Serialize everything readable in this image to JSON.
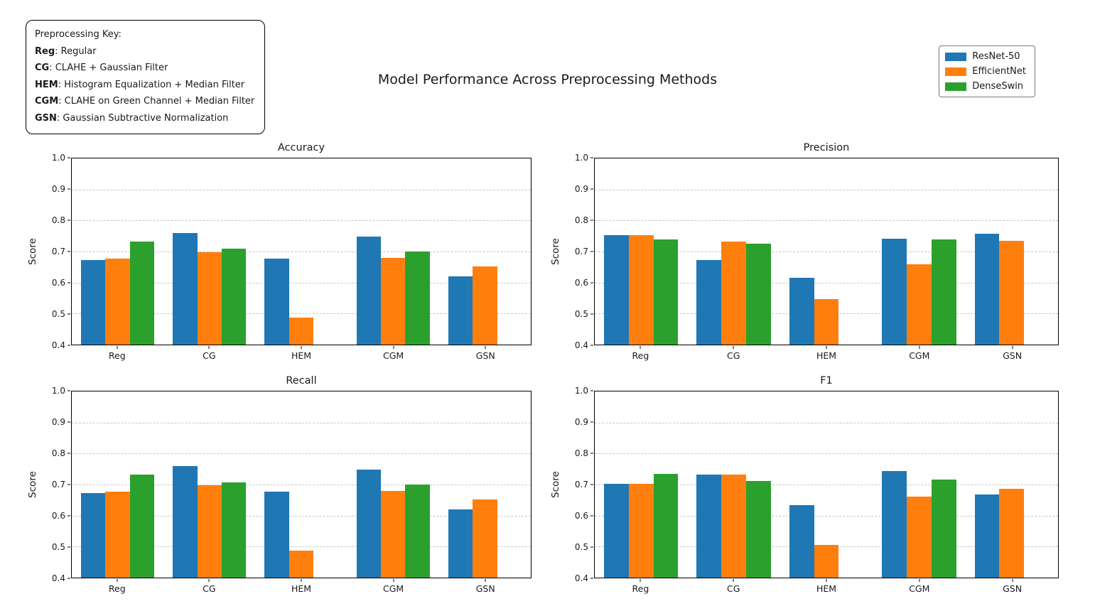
{
  "figure_title": "Model Performance Across Preprocessing Methods",
  "key_box": {
    "title": "Preprocessing Key:",
    "entries": [
      {
        "abbr": "Reg",
        "desc": "Regular"
      },
      {
        "abbr": "CG",
        "desc": "CLAHE + Gaussian Filter"
      },
      {
        "abbr": "HEM",
        "desc": "Histogram Equalization + Median Filter"
      },
      {
        "abbr": "CGM",
        "desc": "CLAHE on Green Channel + Median Filter"
      },
      {
        "abbr": "GSN",
        "desc": "Gaussian Subtractive Normalization"
      }
    ]
  },
  "legend": {
    "position": "top-right",
    "items": [
      {
        "label": "ResNet-50",
        "color": "#1f77b4"
      },
      {
        "label": "EfficientNet",
        "color": "#ff7f0e"
      },
      {
        "label": "DenseSwin",
        "color": "#2ca02c"
      }
    ]
  },
  "chart_data": [
    {
      "type": "bar",
      "title": "Accuracy",
      "ylabel": "Score",
      "ylim": [
        0.4,
        1.0
      ],
      "yticks": [
        0.4,
        0.5,
        0.6,
        0.7,
        0.8,
        0.9,
        1.0
      ],
      "grid": "horizontal-dashed",
      "categories": [
        "Reg",
        "CG",
        "HEM",
        "CGM",
        "GSN"
      ],
      "series": [
        {
          "name": "ResNet-50",
          "color": "#1f77b4",
          "values": [
            0.672,
            0.76,
            0.677,
            0.748,
            0.62
          ]
        },
        {
          "name": "EfficientNet",
          "color": "#ff7f0e",
          "values": [
            0.677,
            0.697,
            0.486,
            0.68,
            0.653
          ]
        },
        {
          "name": "DenseSwin",
          "color": "#2ca02c",
          "values": [
            0.733,
            0.709,
            null,
            0.699,
            null
          ]
        }
      ]
    },
    {
      "type": "bar",
      "title": "Precision",
      "ylabel": "Score",
      "ylim": [
        0.4,
        1.0
      ],
      "yticks": [
        0.4,
        0.5,
        0.6,
        0.7,
        0.8,
        0.9,
        1.0
      ],
      "grid": "horizontal-dashed",
      "categories": [
        "Reg",
        "CG",
        "HEM",
        "CGM",
        "GSN"
      ],
      "series": [
        {
          "name": "ResNet-50",
          "color": "#1f77b4",
          "values": [
            0.752,
            0.672,
            0.615,
            0.742,
            0.757
          ]
        },
        {
          "name": "EfficientNet",
          "color": "#ff7f0e",
          "values": [
            0.753,
            0.733,
            0.547,
            0.658,
            0.735
          ]
        },
        {
          "name": "DenseSwin",
          "color": "#2ca02c",
          "values": [
            0.74,
            0.726,
            null,
            0.74,
            null
          ]
        }
      ]
    },
    {
      "type": "bar",
      "title": "Recall",
      "ylabel": "Score",
      "ylim": [
        0.4,
        1.0
      ],
      "yticks": [
        0.4,
        0.5,
        0.6,
        0.7,
        0.8,
        0.9,
        1.0
      ],
      "grid": "horizontal-dashed",
      "categories": [
        "Reg",
        "CG",
        "HEM",
        "CGM",
        "GSN"
      ],
      "series": [
        {
          "name": "ResNet-50",
          "color": "#1f77b4",
          "values": [
            0.672,
            0.76,
            0.677,
            0.748,
            0.62
          ]
        },
        {
          "name": "EfficientNet",
          "color": "#ff7f0e",
          "values": [
            0.677,
            0.697,
            0.486,
            0.68,
            0.653
          ]
        },
        {
          "name": "DenseSwin",
          "color": "#2ca02c",
          "values": [
            0.733,
            0.708,
            null,
            0.699,
            null
          ]
        }
      ]
    },
    {
      "type": "bar",
      "title": "F1",
      "ylabel": "Score",
      "ylim": [
        0.4,
        1.0
      ],
      "yticks": [
        0.4,
        0.5,
        0.6,
        0.7,
        0.8,
        0.9,
        1.0
      ],
      "grid": "horizontal-dashed",
      "categories": [
        "Reg",
        "CG",
        "HEM",
        "CGM",
        "GSN"
      ],
      "series": [
        {
          "name": "ResNet-50",
          "color": "#1f77b4",
          "values": [
            0.703,
            0.732,
            0.633,
            0.744,
            0.669
          ]
        },
        {
          "name": "EfficientNet",
          "color": "#ff7f0e",
          "values": [
            0.703,
            0.732,
            0.506,
            0.66,
            0.687
          ]
        },
        {
          "name": "DenseSwin",
          "color": "#2ca02c",
          "values": [
            0.734,
            0.712,
            null,
            0.715,
            null
          ]
        }
      ]
    }
  ]
}
